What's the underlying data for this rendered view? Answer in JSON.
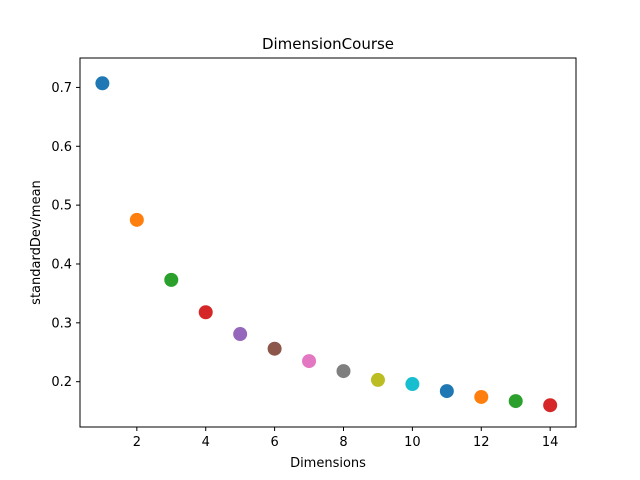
{
  "chart_data": {
    "type": "scatter",
    "title": "DimensionCourse",
    "xlabel": "Dimensions",
    "ylabel": "standardDev/mean",
    "xlim": [
      0.35,
      14.75
    ],
    "ylim": [
      0.123,
      0.75
    ],
    "xticks": [
      2,
      4,
      6,
      8,
      10,
      12,
      14
    ],
    "yticks": [
      0.2,
      0.3,
      0.4,
      0.5,
      0.6,
      0.7
    ],
    "xtick_labels": [
      "2",
      "4",
      "6",
      "8",
      "10",
      "12",
      "14"
    ],
    "ytick_labels": [
      "0.2",
      "0.3",
      "0.4",
      "0.5",
      "0.6",
      "0.7"
    ],
    "grid": false,
    "legend": "none",
    "points": [
      {
        "x": 1,
        "y": 0.707,
        "color": "#1f77b4"
      },
      {
        "x": 2,
        "y": 0.475,
        "color": "#ff7f0e"
      },
      {
        "x": 3,
        "y": 0.373,
        "color": "#2ca02c"
      },
      {
        "x": 4,
        "y": 0.318,
        "color": "#d62728"
      },
      {
        "x": 5,
        "y": 0.281,
        "color": "#9467bd"
      },
      {
        "x": 6,
        "y": 0.256,
        "color": "#8c564b"
      },
      {
        "x": 7,
        "y": 0.235,
        "color": "#e377c2"
      },
      {
        "x": 8,
        "y": 0.218,
        "color": "#7f7f7f"
      },
      {
        "x": 9,
        "y": 0.203,
        "color": "#bcbd22"
      },
      {
        "x": 10,
        "y": 0.196,
        "color": "#17becf"
      },
      {
        "x": 11,
        "y": 0.184,
        "color": "#1f77b4"
      },
      {
        "x": 12,
        "y": 0.174,
        "color": "#ff7f0e"
      },
      {
        "x": 13,
        "y": 0.167,
        "color": "#2ca02c"
      },
      {
        "x": 14,
        "y": 0.16,
        "color": "#d62728"
      }
    ]
  }
}
